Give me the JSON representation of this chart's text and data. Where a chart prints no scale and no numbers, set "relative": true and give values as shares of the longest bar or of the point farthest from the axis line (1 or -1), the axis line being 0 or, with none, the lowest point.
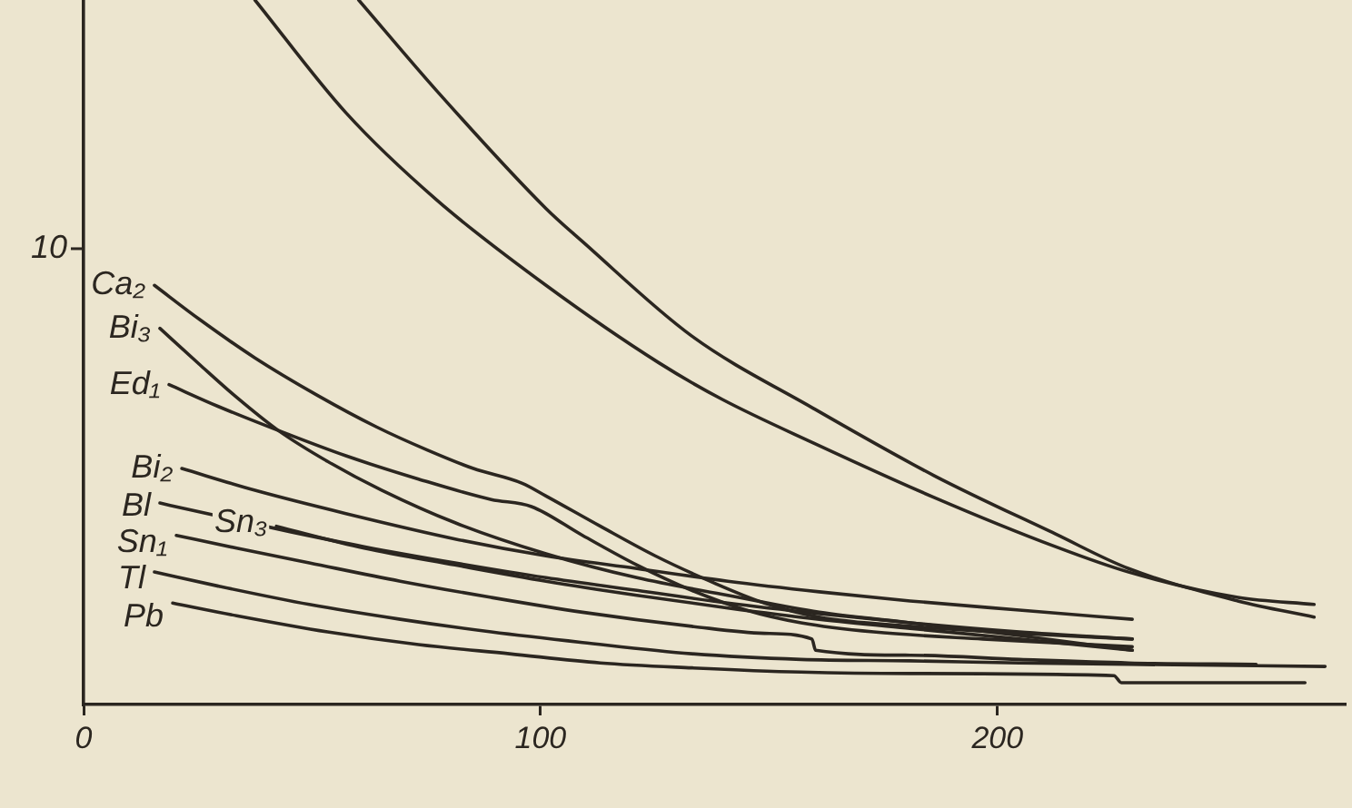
{
  "chart_data": {
    "type": "line",
    "relative": true,
    "xlim": [
      0,
      276
    ],
    "xticks": [
      0,
      100,
      200
    ],
    "marker": "none",
    "line_style": "solid",
    "annotations": [
      "10"
    ],
    "series": [
      {
        "color": "#2b2620",
        "x": [
          37.5,
          57.4,
          77.3,
          101.2,
          125.9,
          139.8,
          159.8,
          186.1,
          212.7,
          228.7,
          252.6,
          269.3
        ],
        "values": [
          1.0,
          0.84,
          0.716,
          0.595,
          0.485,
          0.433,
          0.371,
          0.294,
          0.224,
          0.188,
          0.152,
          0.142
        ]
      },
      {
        "color": "#2b2620",
        "x": [
          60.2,
          77.3,
          101.2,
          109.2,
          133.1,
          159.8,
          186.1,
          212.7,
          228.7,
          252.6,
          269.3
        ],
        "values": [
          1.0,
          0.871,
          0.704,
          0.657,
          0.523,
          0.42,
          0.325,
          0.242,
          0.193,
          0.147,
          0.124
        ]
      },
      {
        "name": "Ca₂",
        "color": "#2b2620",
        "x": [
          15.5,
          25.5,
          37.5,
          51.4,
          64.1,
          75.3,
          85.3,
          96.0,
          101.2,
          113.1,
          125.1,
          137.1,
          149.0,
          161.0,
          180.9,
          204.8,
          229.5
        ],
        "values": [
          0.595,
          0.546,
          0.492,
          0.438,
          0.394,
          0.361,
          0.335,
          0.314,
          0.296,
          0.253,
          0.211,
          0.175,
          0.144,
          0.124,
          0.111,
          0.101,
          0.093
        ]
      },
      {
        "name": "Bi₃",
        "color": "#2b2620",
        "x": [
          16.7,
          25.5,
          33.5,
          42.6,
          53.4,
          65.3,
          81.3,
          101.2,
          121.1,
          141.0,
          161.0,
          180.9,
          204.8,
          229.5
        ],
        "values": [
          0.534,
          0.482,
          0.436,
          0.389,
          0.345,
          0.304,
          0.258,
          0.214,
          0.18,
          0.155,
          0.131,
          0.116,
          0.098,
          0.077
        ]
      },
      {
        "name": "Ed₁",
        "color": "#2b2620",
        "x": [
          18.7,
          29.5,
          42.6,
          57.4,
          73.3,
          89.2,
          98.0,
          109.2,
          121.1,
          133.1,
          145.0,
          157.0,
          172.9,
          196.8,
          229.5
        ],
        "values": [
          0.454,
          0.423,
          0.389,
          0.353,
          0.32,
          0.291,
          0.281,
          0.24,
          0.198,
          0.162,
          0.134,
          0.116,
          0.103,
          0.093,
          0.082
        ]
      },
      {
        "name": "Bi₂",
        "color": "#2b2620",
        "x": [
          21.5,
          37.5,
          57.4,
          81.3,
          101.2,
          121.1,
          141.0,
          161.0,
          180.9,
          204.8,
          229.5
        ],
        "values": [
          0.335,
          0.304,
          0.271,
          0.235,
          0.211,
          0.193,
          0.175,
          0.16,
          0.147,
          0.134,
          0.121
        ]
      },
      {
        "name": "Bl",
        "color": "#2b2620",
        "x": [
          16.7,
          23.5,
          45.4,
          61.4,
          81.3,
          101.2,
          121.1,
          141.0,
          161.0,
          180.9,
          204.8,
          229.5
        ],
        "values": [
          0.286,
          0.276,
          0.245,
          0.224,
          0.201,
          0.18,
          0.162,
          0.144,
          0.129,
          0.116,
          0.103,
          0.093
        ]
      },
      {
        "name": "Sn₃",
        "color": "#2b2620",
        "x": [
          42.2,
          61.4,
          81.3,
          101.2,
          121.1,
          141.0,
          161.0,
          180.9,
          204.8,
          229.5
        ],
        "values": [
          0.253,
          0.222,
          0.198,
          0.175,
          0.155,
          0.137,
          0.121,
          0.108,
          0.093,
          0.077
        ]
      },
      {
        "name": "Sn₁",
        "color": "#2b2620",
        "x": [
          20.3,
          33.5,
          49.4,
          69.3,
          89.2,
          109.2,
          133.1,
          149.0,
          159.4,
          160.2,
          180.9,
          204.8,
          228.7,
          256.6
        ],
        "values": [
          0.24,
          0.222,
          0.201,
          0.175,
          0.152,
          0.131,
          0.111,
          0.101,
          0.093,
          0.077,
          0.07,
          0.064,
          0.059,
          0.057
        ]
      },
      {
        "name": "Tl",
        "color": "#2b2620",
        "x": [
          15.5,
          29.5,
          49.4,
          69.3,
          89.2,
          109.2,
          133.1,
          157.0,
          180.9,
          204.8,
          228.7,
          271.7
        ],
        "values": [
          0.188,
          0.168,
          0.142,
          0.121,
          0.103,
          0.088,
          0.072,
          0.064,
          0.062,
          0.059,
          0.057,
          0.054
        ]
      },
      {
        "name": "Pb",
        "color": "#2b2620",
        "x": [
          19.5,
          33.5,
          53.4,
          73.3,
          93.2,
          113.1,
          133.1,
          157.0,
          180.9,
          225.5,
          227.1,
          244.6,
          267.3
        ],
        "values": [
          0.144,
          0.126,
          0.103,
          0.085,
          0.072,
          0.059,
          0.052,
          0.046,
          0.044,
          0.041,
          0.031,
          0.031,
          0.031
        ]
      }
    ]
  }
}
